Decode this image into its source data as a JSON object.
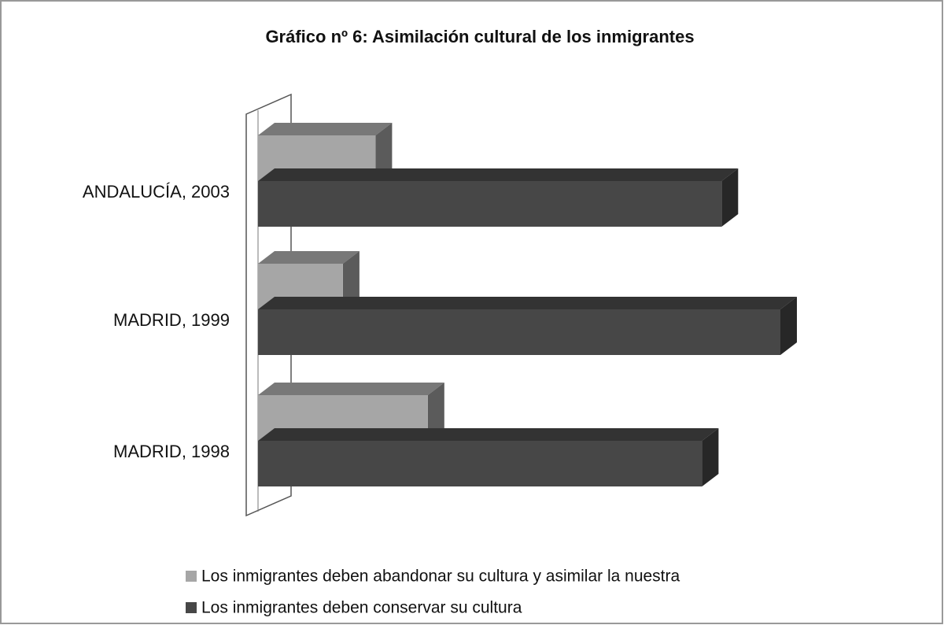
{
  "chart_data": {
    "type": "bar3d_horizontal",
    "title": "Gráfico nº 6: Asimilación cultural de los inmigrantes",
    "categories": [
      "ANDALUCÍA, 2003",
      "MADRID, 1999",
      "MADRID, 1998"
    ],
    "series": [
      {
        "name": "Los inmigrantes deben abandonar su cultura y asimilar la nuestra",
        "color": "#a6a6a6",
        "values": [
          18,
          13,
          26
        ]
      },
      {
        "name": "Los inmigrantes deben conservar su cultura",
        "color": "#474747",
        "values": [
          71,
          80,
          68
        ]
      }
    ],
    "xlim": [
      0,
      100
    ]
  }
}
